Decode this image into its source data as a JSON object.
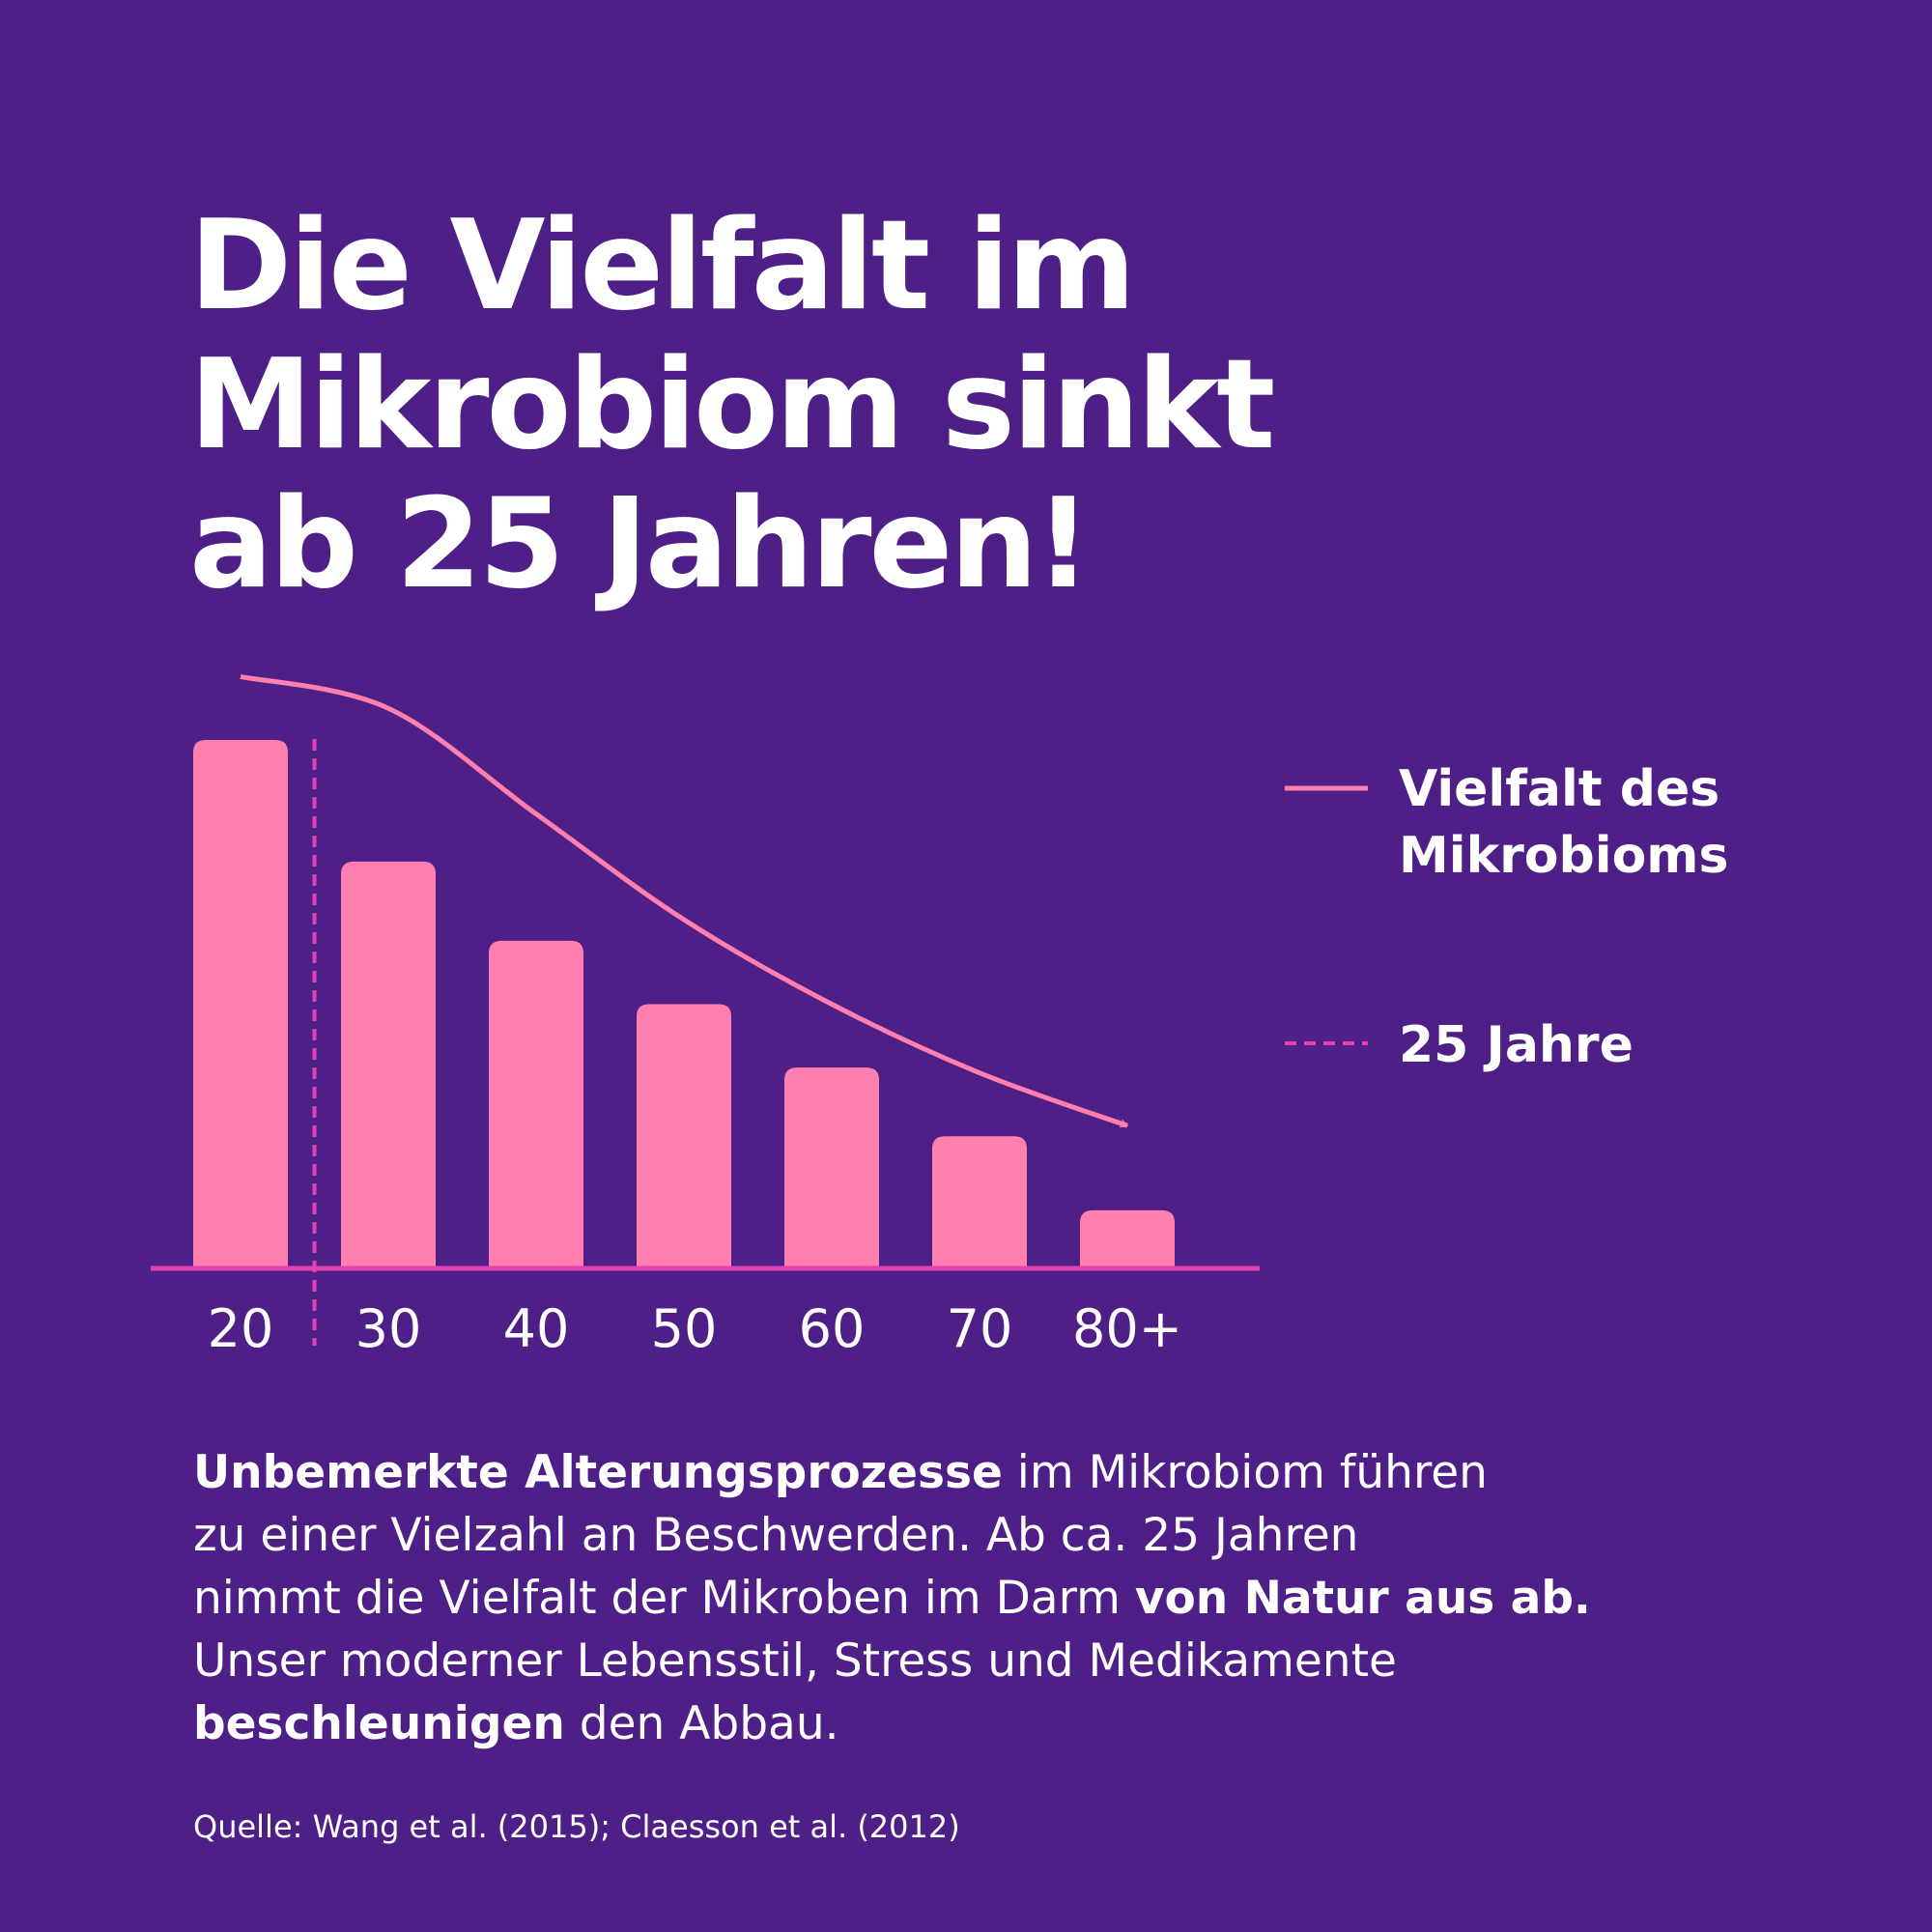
{
  "chart_data": {
    "type": "bar",
    "title_lines": [
      "Die Vielfalt im",
      "Mikrobiom sinkt",
      "ab 25 Jahren!"
    ],
    "categories": [
      "20",
      "30",
      "40",
      "50",
      "60",
      "70",
      "80+"
    ],
    "values": [
      100,
      77,
      62,
      50,
      38,
      25,
      11
    ],
    "color": "#ff80ae",
    "ylim": [
      0,
      115
    ],
    "line": {
      "name": "Vielfalt des Mikrobioms",
      "name_lines": [
        "Vielfalt des",
        "Mikrobioms"
      ],
      "color": "#ff80ae",
      "values": [
        112,
        106,
        86,
        66,
        50,
        37,
        27
      ]
    },
    "vline": {
      "name": "25 Jahre",
      "x": 25,
      "color": "#e040b0"
    },
    "axis_color": "#e040b0"
  },
  "body_lines": [
    [
      {
        "text": "Unbemerkte Alterungsprozesse",
        "bold": true
      },
      {
        "text": " im Mikrobiom führen",
        "bold": false
      }
    ],
    [
      {
        "text": "zu einer Vielzahl an Beschwerden. Ab ca. 25 Jahren",
        "bold": false
      }
    ],
    [
      {
        "text": "nimmt die Vielfalt der Mikroben im Darm ",
        "bold": false
      },
      {
        "text": "von Natur aus ab.",
        "bold": true
      }
    ],
    [
      {
        "text": "Unser moderner Lebensstil, Stress und Medikamente",
        "bold": false
      }
    ],
    [
      {
        "text": "beschleunigen",
        "bold": true
      },
      {
        "text": " den Abbau.",
        "bold": false
      }
    ]
  ],
  "source": "Quelle: Wang et al. (2015); Claesson et al. (2012)"
}
